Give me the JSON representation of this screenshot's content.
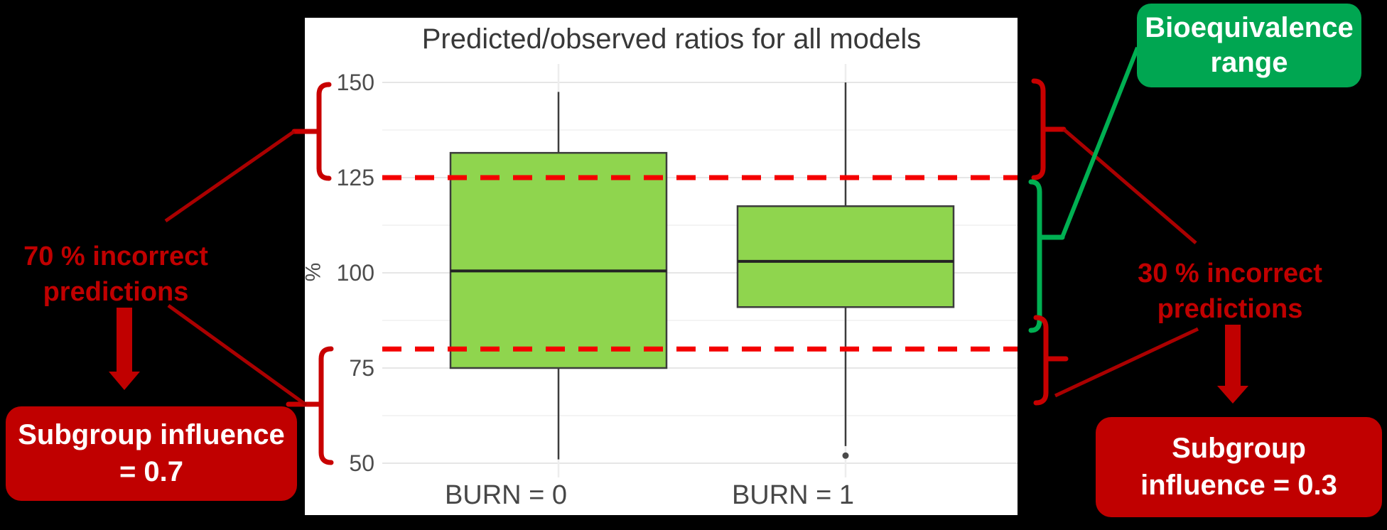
{
  "chart": {
    "title": "Predicted/observed ratios for all models",
    "y_axis_label": "%",
    "y_ticks": [
      150,
      125,
      100,
      75,
      50
    ]
  },
  "chart_data": {
    "type": "boxplot",
    "title": "Predicted/observed ratios for all models",
    "xlabel": "",
    "ylabel": "%",
    "categories": [
      "BURN = 0",
      "BURN = 1"
    ],
    "series": [
      {
        "name": "BURN = 0",
        "whisker_low": 51,
        "q1": 75,
        "median": 100.5,
        "q3": 131.5,
        "whisker_high": 147.5,
        "outliers": []
      },
      {
        "name": "BURN = 1",
        "whisker_low": 54.5,
        "q1": 91,
        "median": 103,
        "q3": 117.5,
        "whisker_high": 150,
        "outliers": [
          52
        ]
      }
    ],
    "reference_lines": [
      {
        "value": 125,
        "style": "dashed",
        "color": "#F40000",
        "meaning": "upper bioequivalence limit"
      },
      {
        "value": 80,
        "style": "dashed",
        "color": "#F40000",
        "meaning": "lower bioequivalence limit"
      }
    ],
    "ylim": [
      45,
      155
    ],
    "grid": true,
    "legend": "none",
    "box_fill": "#8FD54E",
    "box_stroke": "#3C3C3C"
  },
  "annotations": {
    "left_note": {
      "line1": "70 % incorrect",
      "line2": "predictions"
    },
    "left_box": {
      "line1": "Subgroup influence",
      "line2": "= 0.7"
    },
    "right_note": {
      "line1": "30 % incorrect",
      "line2": "predictions"
    },
    "right_box": {
      "line1": "Subgroup",
      "line2": "influence = 0.3"
    },
    "green_box": {
      "line1": "Bioequivalence",
      "line2": "range"
    },
    "colors": {
      "annotation_red": "#C00000",
      "brace_red": "#C80000",
      "line_dark_red": "#AA0000",
      "dashed_red": "#F40000",
      "green_fill": "#00A651",
      "brace_green": "#00B052"
    }
  }
}
